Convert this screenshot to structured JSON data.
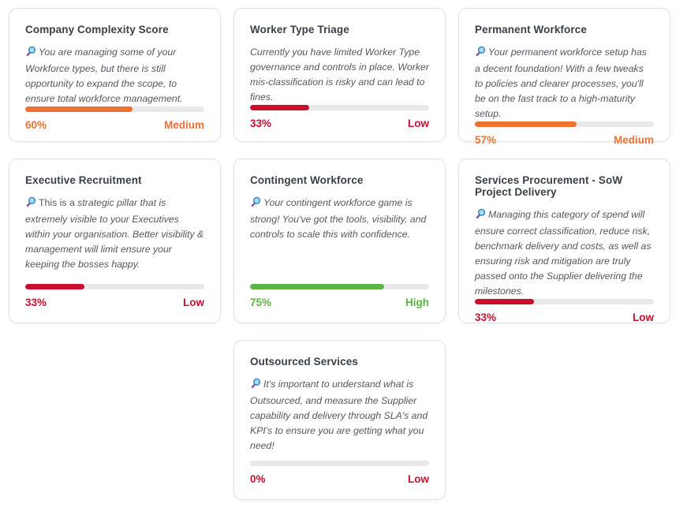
{
  "status_colors": {
    "low": "#c8102e",
    "medium": "#ed7132",
    "high": "#5bb543"
  },
  "track_color": "#e9e9e9",
  "icon_colors": {
    "lens_fill": "#a9dcf6",
    "lens_rim": "#2f80c3",
    "handle": "#7e57a2"
  },
  "cards": [
    {
      "title": "Company Complexity Score",
      "icon": "magnifying-glass",
      "intro": "",
      "description": "You are managing some of your Workforce types, but there is still opportunity to expand the scope, to ensure total workforce management.",
      "percent": 60,
      "percent_label": "60%",
      "rating": "Medium",
      "status": "medium"
    },
    {
      "title": "Worker Type Triage",
      "icon": null,
      "intro": "",
      "description": "Currently you have limited Worker Type governance and controls in place. Worker mis-classification is risky and can lead to fines.",
      "percent": 33,
      "percent_label": "33%",
      "rating": "Low",
      "status": "low"
    },
    {
      "title": "Permanent Workforce",
      "icon": "magnifying-glass",
      "intro": "",
      "description": "Your permanent workforce setup has a decent foundation! With a few tweaks to policies and clearer processes, you'll be on the fast track to a high-maturity setup.",
      "percent": 57,
      "percent_label": "57%",
      "rating": "Medium",
      "status": "medium"
    },
    {
      "title": "Executive Recruitment",
      "icon": "magnifying-glass",
      "intro": "This is a ",
      "description": "strategic pillar that is extremely visible to your Executives within your organisation. Better visibility & management will limit ensure your keeping the bosses happy.",
      "percent": 33,
      "percent_label": "33%",
      "rating": "Low",
      "status": "low"
    },
    {
      "title": "Contingent Workforce",
      "icon": "magnifying-glass",
      "intro": "",
      "description": "Your contingent workforce game is strong! You've got the tools, visibility, and controls to scale this with confidence.",
      "percent": 75,
      "percent_label": "75%",
      "rating": "High",
      "status": "high"
    },
    {
      "title": "Services Procurement - SoW Project Delivery",
      "icon": "magnifying-glass",
      "intro": "",
      "description": "Managing this category of spend will ensure correct classification, reduce risk, benchmark delivery and costs, as well as ensuring risk and mitigation are truly passed onto the Supplier delivering the milestones.",
      "percent": 33,
      "percent_label": "33%",
      "rating": "Low",
      "status": "low"
    },
    {
      "title": "Outsourced Services",
      "icon": "magnifying-glass",
      "intro": "",
      "description": "It's important to understand what is Outsourced, and measure the Supplier capability and delivery through SLA's and KPI's to ensure you are getting what you need!",
      "percent": 0,
      "percent_label": "0%",
      "rating": "Low",
      "status": "low"
    }
  ]
}
